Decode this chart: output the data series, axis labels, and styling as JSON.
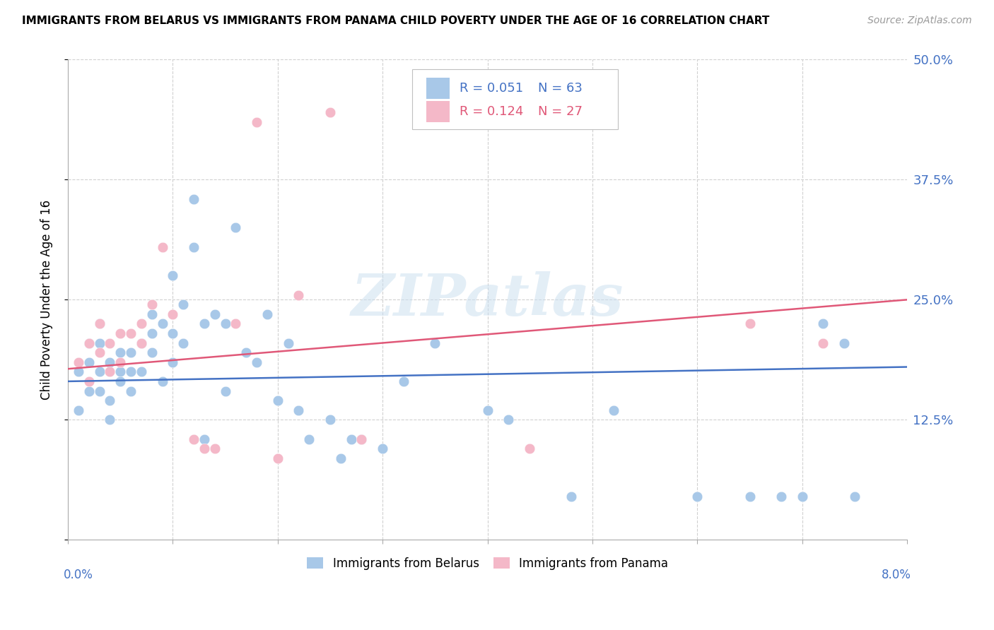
{
  "title": "IMMIGRANTS FROM BELARUS VS IMMIGRANTS FROM PANAMA CHILD POVERTY UNDER THE AGE OF 16 CORRELATION CHART",
  "source": "Source: ZipAtlas.com",
  "ylabel": "Child Poverty Under the Age of 16",
  "ytick_vals": [
    0.0,
    0.125,
    0.25,
    0.375,
    0.5
  ],
  "ytick_labels": [
    "",
    "12.5%",
    "25.0%",
    "37.5%",
    "50.0%"
  ],
  "xlim": [
    0.0,
    0.08
  ],
  "ylim": [
    0.0,
    0.5
  ],
  "legend_r_belarus": "R = 0.051",
  "legend_n_belarus": "N = 63",
  "legend_r_panama": "R = 0.124",
  "legend_n_panama": "N = 27",
  "color_belarus": "#a8c8e8",
  "color_panama": "#f4b8c8",
  "color_line_belarus": "#4472c4",
  "color_line_panama": "#e05878",
  "color_text_blue": "#4472c4",
  "color_text_pink": "#e05878",
  "watermark": "ZIPatlas",
  "bel_line_y0": 0.165,
  "bel_line_y1": 0.18,
  "pan_line_y0": 0.178,
  "pan_line_y1": 0.25,
  "belarus_x": [
    0.001,
    0.001,
    0.002,
    0.002,
    0.002,
    0.003,
    0.003,
    0.003,
    0.003,
    0.004,
    0.004,
    0.004,
    0.005,
    0.005,
    0.005,
    0.006,
    0.006,
    0.006,
    0.007,
    0.007,
    0.008,
    0.008,
    0.008,
    0.009,
    0.009,
    0.01,
    0.01,
    0.01,
    0.011,
    0.011,
    0.012,
    0.012,
    0.013,
    0.013,
    0.014,
    0.015,
    0.015,
    0.016,
    0.017,
    0.018,
    0.019,
    0.02,
    0.021,
    0.022,
    0.023,
    0.025,
    0.026,
    0.027,
    0.028,
    0.03,
    0.032,
    0.035,
    0.04,
    0.042,
    0.048,
    0.052,
    0.06,
    0.065,
    0.068,
    0.07,
    0.072,
    0.074,
    0.075
  ],
  "belarus_y": [
    0.175,
    0.135,
    0.185,
    0.155,
    0.205,
    0.175,
    0.155,
    0.205,
    0.225,
    0.185,
    0.145,
    0.125,
    0.165,
    0.175,
    0.195,
    0.155,
    0.175,
    0.195,
    0.175,
    0.205,
    0.195,
    0.215,
    0.235,
    0.225,
    0.165,
    0.275,
    0.185,
    0.215,
    0.205,
    0.245,
    0.305,
    0.355,
    0.225,
    0.105,
    0.235,
    0.225,
    0.155,
    0.325,
    0.195,
    0.185,
    0.235,
    0.145,
    0.205,
    0.135,
    0.105,
    0.125,
    0.085,
    0.105,
    0.105,
    0.095,
    0.165,
    0.205,
    0.135,
    0.125,
    0.045,
    0.135,
    0.045,
    0.045,
    0.045,
    0.045,
    0.225,
    0.205,
    0.045
  ],
  "panama_x": [
    0.001,
    0.002,
    0.002,
    0.003,
    0.003,
    0.004,
    0.004,
    0.005,
    0.005,
    0.006,
    0.007,
    0.007,
    0.008,
    0.009,
    0.01,
    0.012,
    0.013,
    0.014,
    0.016,
    0.018,
    0.02,
    0.022,
    0.025,
    0.028,
    0.044,
    0.065,
    0.072
  ],
  "panama_y": [
    0.185,
    0.205,
    0.165,
    0.195,
    0.225,
    0.205,
    0.175,
    0.215,
    0.185,
    0.215,
    0.225,
    0.205,
    0.245,
    0.305,
    0.235,
    0.105,
    0.095,
    0.095,
    0.225,
    0.435,
    0.085,
    0.255,
    0.445,
    0.105,
    0.095,
    0.225,
    0.205
  ]
}
